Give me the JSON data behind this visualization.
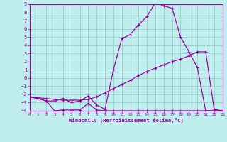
{
  "xlabel": "Windchill (Refroidissement éolien,°C)",
  "bg_color": "#c0eded",
  "line_color": "#990099",
  "grid_color": "#99cccc",
  "xlim": [
    0,
    23
  ],
  "ylim": [
    -4,
    9
  ],
  "xticks": [
    0,
    1,
    2,
    3,
    4,
    5,
    6,
    7,
    8,
    9,
    10,
    11,
    12,
    13,
    14,
    15,
    16,
    17,
    18,
    19,
    20,
    21,
    22,
    23
  ],
  "yticks": [
    -4,
    -3,
    -2,
    -1,
    0,
    1,
    2,
    3,
    4,
    5,
    6,
    7,
    8,
    9
  ],
  "line1_x": [
    0,
    1,
    2,
    3,
    4,
    5,
    6,
    7,
    8,
    9,
    10,
    11,
    12,
    13,
    14,
    15,
    16,
    17,
    18,
    19,
    20,
    21,
    22,
    23
  ],
  "line1_y": [
    -2.3,
    -2.5,
    -2.8,
    -4.0,
    -3.9,
    -3.9,
    -3.9,
    -3.1,
    -3.9,
    -4.0,
    -4.0,
    -4.0,
    -4.0,
    -4.0,
    -4.0,
    -4.0,
    -4.0,
    -4.0,
    -4.0,
    -4.0,
    -4.0,
    -4.0,
    -4.0,
    -4.0
  ],
  "line2_x": [
    0,
    1,
    2,
    3,
    4,
    5,
    6,
    7,
    8,
    9,
    10,
    11,
    12,
    13,
    14,
    15,
    16,
    17,
    18,
    19,
    20,
    21,
    22,
    23
  ],
  "line2_y": [
    -2.3,
    -2.4,
    -2.5,
    -2.6,
    -2.7,
    -2.7,
    -2.7,
    -2.6,
    -2.3,
    -1.8,
    -1.3,
    -0.8,
    -0.3,
    0.3,
    0.8,
    1.2,
    1.6,
    2.0,
    2.3,
    2.7,
    3.2,
    3.2,
    -3.8,
    -4.0
  ],
  "line3_x": [
    0,
    1,
    2,
    3,
    4,
    5,
    6,
    7,
    8,
    9,
    10,
    11,
    12,
    13,
    14,
    15,
    16,
    17,
    18,
    19,
    20,
    21,
    22,
    23
  ],
  "line3_y": [
    -2.3,
    -2.5,
    -2.8,
    -2.8,
    -2.5,
    -3.0,
    -2.8,
    -2.2,
    -3.3,
    -3.8,
    1.0,
    4.8,
    5.3,
    6.5,
    7.5,
    9.2,
    8.8,
    8.5,
    5.0,
    3.2,
    1.3,
    -4.0,
    -4.0,
    -4.0
  ]
}
